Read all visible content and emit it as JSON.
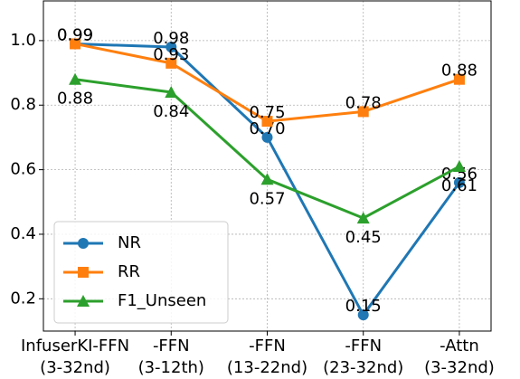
{
  "chart_data": {
    "type": "line",
    "categories": [
      [
        "InfuserKI-FFN",
        "(3-32nd)"
      ],
      [
        "-FFN",
        "(3-12th)"
      ],
      [
        "-FFN",
        "(13-22nd)"
      ],
      [
        "-FFN",
        "(23-32nd)"
      ],
      [
        "-Attn",
        "(3-32nd)"
      ]
    ],
    "series": [
      {
        "name": "NR",
        "color": "#1f77b4",
        "marker": "circle",
        "label_position": "above",
        "values": [
          0.99,
          0.98,
          0.7,
          0.15,
          0.56
        ],
        "value_labels": [
          "0.99",
          "0.98",
          "0.70",
          "0.15",
          "0.56"
        ]
      },
      {
        "name": "RR",
        "color": "#ff7f0e",
        "marker": "square",
        "label_position": "above",
        "values": [
          0.99,
          0.93,
          0.75,
          0.78,
          0.88
        ],
        "value_labels": [
          "0.99",
          "0.93",
          "0.75",
          "0.78",
          "0.88"
        ]
      },
      {
        "name": "F1_Unseen",
        "color": "#2ca02c",
        "marker": "triangle",
        "label_position": "below",
        "values": [
          0.88,
          0.84,
          0.57,
          0.45,
          0.61
        ],
        "value_labels": [
          "0.88",
          "0.84",
          "0.57",
          "0.45",
          "0.61"
        ]
      }
    ],
    "ylim": [
      0.1,
      1.123
    ],
    "yticks": [
      0.2,
      0.4,
      0.6,
      0.8,
      {
        "value": 1,
        "label": "1.0"
      }
    ],
    "grid": true,
    "legend": "lower left"
  }
}
